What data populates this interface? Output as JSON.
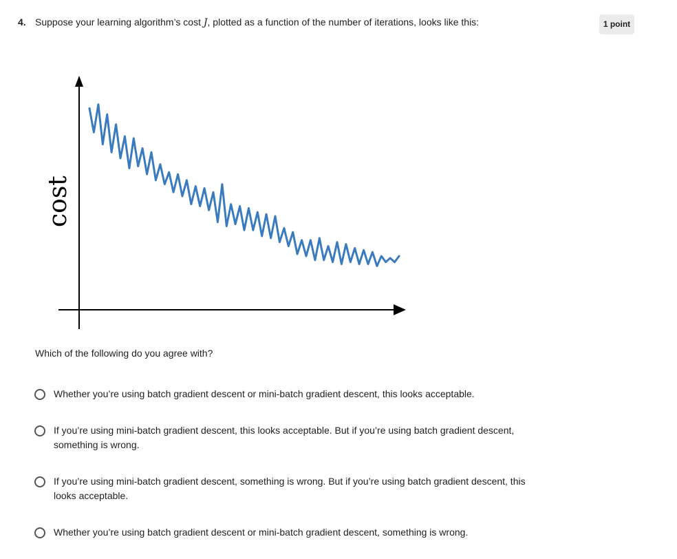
{
  "question": {
    "number": "4.",
    "text_before": "Suppose your learning algorithm’s cost ",
    "math_symbol": "J",
    "text_after": ", plotted as a function of the number of iterations, looks like this:",
    "points": "1 point",
    "prompt": "Which of the following do you agree with?"
  },
  "chart_data": {
    "type": "line",
    "ylabel": "cost",
    "xlabel": "",
    "description_color": "#3a7bbf",
    "series": [
      {
        "values": [
          9.4,
          8.2,
          9.6,
          7.6,
          9.1,
          7.2,
          8.6,
          6.9,
          8.0,
          6.4,
          7.9,
          6.5,
          7.4,
          6.1,
          7.2,
          5.8,
          6.6,
          5.6,
          6.2,
          5.2,
          6.1,
          5.0,
          5.8,
          4.6,
          5.5,
          4.5,
          5.4,
          4.3,
          5.2,
          3.7,
          5.6,
          3.5,
          4.6,
          3.6,
          4.5,
          3.3,
          4.4,
          3.3,
          4.2,
          3.0,
          4.1,
          2.9,
          4.0,
          2.7,
          3.4,
          2.5,
          3.2,
          2.1,
          2.8,
          2.0,
          2.8,
          1.8,
          2.9,
          1.8,
          2.5,
          1.7,
          2.7,
          1.6,
          2.6,
          1.7,
          2.4,
          1.6,
          2.3,
          1.6,
          2.2,
          1.5,
          2.0,
          1.7,
          1.9,
          1.7,
          2.0
        ]
      }
    ],
    "colors": {
      "line": "#3a7bbf",
      "axes": "#000000"
    },
    "grid": false,
    "legend": "none"
  },
  "options": [
    {
      "label": "Whether you’re using batch gradient descent or mini-batch gradient descent, this looks acceptable."
    },
    {
      "label": "If you’re using mini-batch gradient descent, this looks acceptable. But if you’re using batch gradient descent, something is wrong."
    },
    {
      "label": "If you’re using mini-batch gradient descent, something is wrong. But if you’re using batch gradient descent, this looks acceptable."
    },
    {
      "label": "Whether you’re using batch gradient descent or mini-batch gradient descent, something is wrong."
    }
  ]
}
